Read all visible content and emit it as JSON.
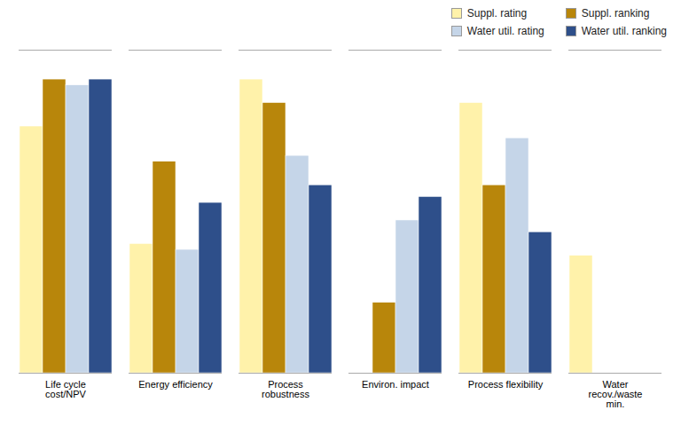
{
  "chart_data": {
    "type": "bar",
    "categories": [
      "Life cycle\ncost/NPV",
      "Energy efficiency",
      "Process\nrobustness",
      "Environ. impact",
      "Process flexibility",
      "Water\nrecov./waste\nmin."
    ],
    "series": [
      {
        "name": "Suppl. rating",
        "color": "#FFF2AA",
        "values": [
          4.2,
          2.2,
          5.0,
          0.0,
          4.6,
          2.0
        ]
      },
      {
        "name": "Suppl. ranking",
        "color": "#B8860B",
        "values": [
          5.0,
          3.6,
          4.6,
          1.2,
          3.2,
          0.0
        ]
      },
      {
        "name": "Water util. rating",
        "color": "#C5D5E8",
        "values": [
          4.9,
          2.1,
          3.7,
          2.6,
          4.0,
          0.0
        ]
      },
      {
        "name": "Water util. ranking",
        "color": "#2E4F8A",
        "values": [
          5.0,
          2.9,
          3.2,
          3.0,
          2.4,
          0.0
        ]
      }
    ],
    "ylim": [
      0,
      5.5
    ],
    "yticks": [],
    "grid": false,
    "legend": "upper right",
    "tick_labels": "x"
  }
}
